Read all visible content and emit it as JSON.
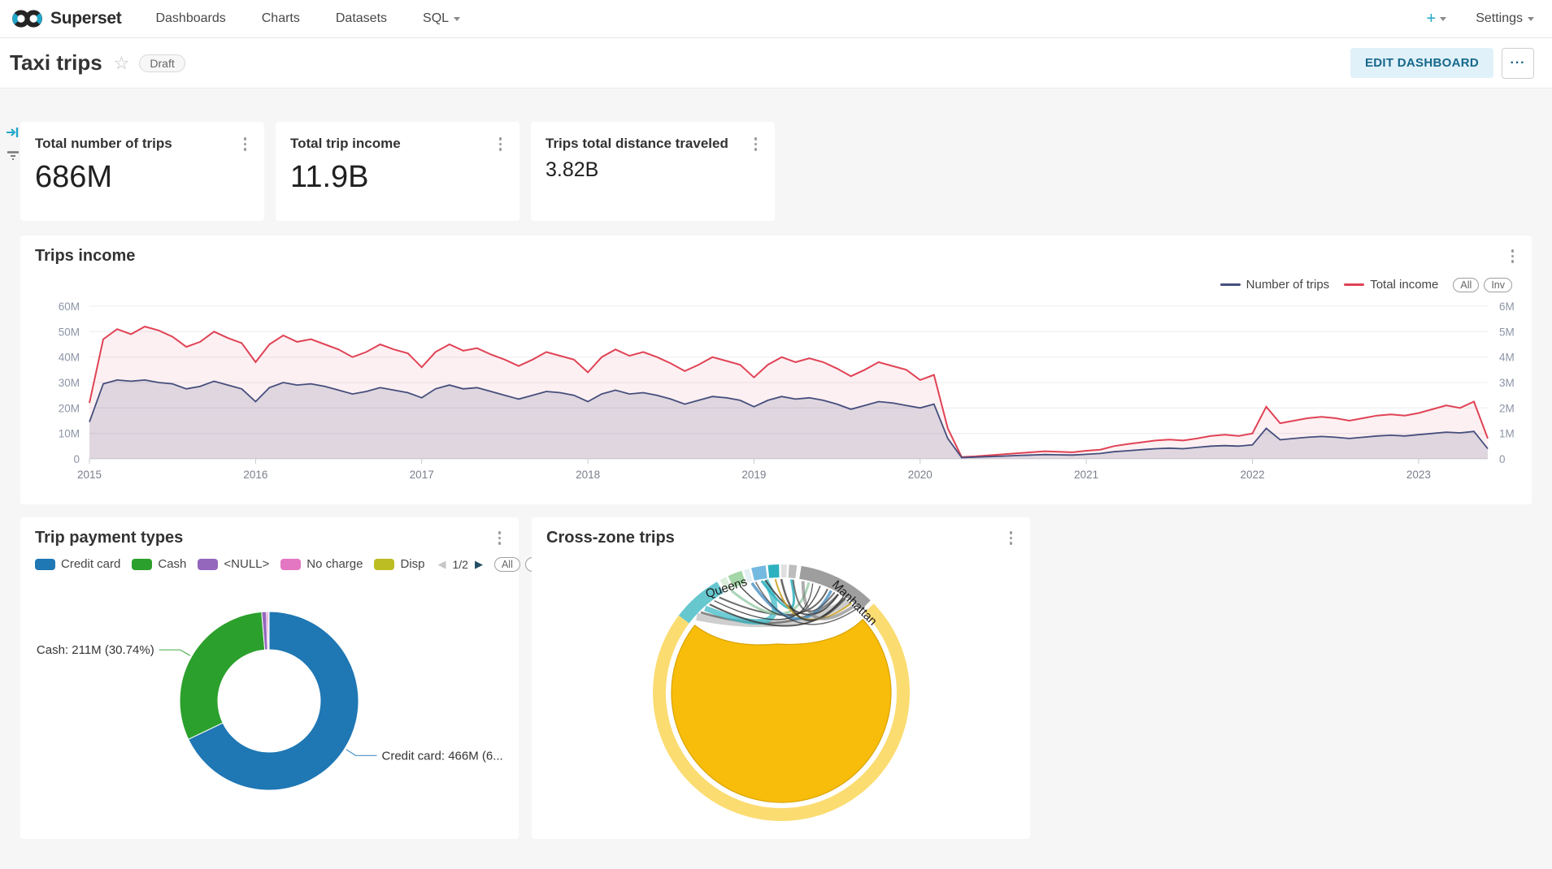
{
  "navbar": {
    "brand": "Superset",
    "items": [
      "Dashboards",
      "Charts",
      "Datasets",
      "SQL"
    ],
    "plus_label": "+",
    "settings_label": "Settings"
  },
  "header": {
    "title": "Taxi trips",
    "badge": "Draft",
    "edit_button": "EDIT DASHBOARD",
    "more_button": "···"
  },
  "kpis": [
    {
      "title": "Total number of trips",
      "value": "686M"
    },
    {
      "title": "Total trip income",
      "value": "11.9B"
    },
    {
      "title": "Trips total distance traveled",
      "value": "3.82B"
    }
  ],
  "panels": {
    "trips_income": {
      "title": "Trips income"
    },
    "payment": {
      "title": "Trip payment types",
      "pagination": "1/2",
      "prev": "◀",
      "next": "▶"
    },
    "crosszone": {
      "title": "Cross-zone trips"
    }
  },
  "controls": {
    "all": "All",
    "inv": "Inv"
  },
  "chart_data": [
    {
      "id": "trips_income",
      "type": "area",
      "title": "Trips income",
      "x_start": "2015-01",
      "x_interval": "month",
      "x_ticks": [
        "2015",
        "2016",
        "2017",
        "2018",
        "2019",
        "2020",
        "2021",
        "2022",
        "2023"
      ],
      "y_left_ticks": [
        "0",
        "10M",
        "20M",
        "30M",
        "40M",
        "50M",
        "60M"
      ],
      "y_right_ticks": [
        "0",
        "1M",
        "2M",
        "3M",
        "4M",
        "5M",
        "6M"
      ],
      "y_left_max": 60,
      "grid": true,
      "legend_position": "top-right",
      "series": [
        {
          "name": "Number of trips",
          "color": "#454E7C",
          "fill": "rgba(69,78,124,0.16)",
          "values": [
            14.5,
            29.5,
            31,
            30.5,
            31,
            30,
            29.5,
            27.5,
            28.5,
            30.5,
            29,
            27.5,
            22.5,
            28,
            30,
            29,
            29.5,
            28.5,
            27,
            25.5,
            26.5,
            28,
            27,
            26,
            24,
            27.5,
            29,
            27.5,
            28,
            26.5,
            25,
            23.5,
            25,
            26.5,
            26,
            25,
            22.5,
            25.5,
            27,
            25.5,
            26,
            25,
            23.5,
            21.5,
            23,
            24.5,
            24,
            23,
            20.5,
            23,
            24.5,
            23.5,
            24,
            23,
            21.5,
            19.5,
            21,
            22.5,
            22,
            21,
            20,
            21.5,
            8,
            0.5,
            0.7,
            0.9,
            1.1,
            1.3,
            1.5,
            1.7,
            1.6,
            1.5,
            1.8,
            2.1,
            2.8,
            3.2,
            3.6,
            4,
            4.2,
            4,
            4.5,
            5,
            5.2,
            5,
            5.5,
            12,
            7.5,
            8,
            8.5,
            8.8,
            8.5,
            8,
            8.5,
            9,
            9.3,
            9,
            9.5,
            10,
            10.5,
            10.2,
            10.8,
            4
          ]
        },
        {
          "name": "Total income",
          "color": "#E04355",
          "fill": "rgba(224,67,85,0.08)",
          "values": [
            22,
            47,
            51,
            49,
            52,
            50.5,
            48,
            44,
            46,
            50,
            47.5,
            45.5,
            38,
            45,
            48.5,
            46,
            47,
            45,
            43,
            40,
            42,
            45,
            43,
            41.5,
            36,
            42,
            45,
            42.5,
            43.5,
            41,
            39,
            36.5,
            39,
            42,
            40.5,
            39,
            34,
            40,
            43,
            40.5,
            42,
            40,
            37.5,
            34.5,
            37,
            40,
            38.5,
            37,
            32,
            37,
            40,
            38,
            39.5,
            38,
            35.5,
            32.5,
            35,
            38,
            36.5,
            35,
            31,
            33,
            12,
            0.7,
            1,
            1.4,
            1.8,
            2.2,
            2.6,
            3,
            2.8,
            2.6,
            3.2,
            3.6,
            5,
            5.8,
            6.5,
            7.2,
            7.6,
            7.2,
            8,
            9,
            9.5,
            9,
            10,
            20.5,
            14,
            15,
            16,
            16.5,
            16,
            15,
            16,
            17,
            17.5,
            17,
            18,
            19.5,
            21,
            20,
            22.5,
            8
          ]
        }
      ]
    },
    {
      "id": "payment_types",
      "type": "pie",
      "title": "Trip payment types",
      "donut": true,
      "slices": [
        {
          "label": "Credit card",
          "color": "#1F77B4",
          "pct": 67.93,
          "callout": "Credit card: 466M (6..."
        },
        {
          "label": "Cash",
          "color": "#2CA02C",
          "pct": 30.74,
          "callout": "Cash: 211M (30.74%)"
        },
        {
          "label": "<NULL>",
          "color": "#9467BD",
          "pct": 0.85
        },
        {
          "label": "No charge",
          "color": "#E377C2",
          "pct": 0.32
        },
        {
          "label": "Disp",
          "color": "#BCBD22",
          "pct": 0.16
        }
      ]
    },
    {
      "id": "cross_zone",
      "type": "chord",
      "title": "Cross-zone trips",
      "zones": [
        {
          "label": "Queens",
          "color": "#66C7CF",
          "start": -53,
          "end": -30
        },
        {
          "label": "",
          "color": "#D9EDDA",
          "start": -28.5,
          "end": -25.5
        },
        {
          "label": "",
          "color": "#A5D6A7",
          "start": -24.5,
          "end": -18
        },
        {
          "label": "",
          "color": "#E3F0F3",
          "start": -17,
          "end": -14.5
        },
        {
          "label": "",
          "color": "#74B9E0",
          "start": -13.5,
          "end": -7
        },
        {
          "label": "",
          "color": "#2EB1BE",
          "start": -6,
          "end": -1
        },
        {
          "label": "",
          "color": "#E0E0E0",
          "start": 0,
          "end": 2.5
        },
        {
          "label": "",
          "color": "#BDBDBD",
          "start": 3.5,
          "end": 7
        },
        {
          "label": "Manhattan",
          "color": "#9E9E9E",
          "start": 9,
          "end": 44
        },
        {
          "label": "",
          "color": "#FBDC71",
          "start": 46,
          "end": 307
        }
      ],
      "hub": {
        "color": "#F8BD0A",
        "stroke": "#D9A303"
      },
      "ribbons": [
        [
          -48,
          36,
          "#9E9E9E",
          9,
          0.5
        ],
        [
          -45,
          30,
          "#666666",
          2.5,
          0.8
        ],
        [
          -42,
          -8,
          "#3FBAC6",
          7,
          0.75
        ],
        [
          -39,
          33,
          "#333333",
          2,
          0.8
        ],
        [
          -33,
          24,
          "#444444",
          2,
          0.8
        ],
        [
          -26,
          14,
          "#96CBA5",
          3,
          0.8
        ],
        [
          -21,
          20,
          "#333333",
          1.5,
          0.8
        ],
        [
          -15,
          26,
          "#4A90C4",
          3.5,
          0.8
        ],
        [
          -10,
          5,
          "#2EB1BE",
          3,
          0.85
        ],
        [
          -8,
          30,
          "#333333",
          2,
          0.8
        ],
        [
          -3,
          38,
          "#C9A227",
          2,
          0.9
        ],
        [
          0,
          34,
          "#333333",
          2.5,
          0.75
        ],
        [
          6,
          28,
          "#555555",
          2,
          0.8
        ],
        [
          11,
          40,
          "#777777",
          4,
          0.6
        ],
        [
          -36,
          16,
          "#222222",
          1.2,
          0.8
        ],
        [
          -13,
          42,
          "#333333",
          1.5,
          0.7
        ]
      ]
    }
  ]
}
